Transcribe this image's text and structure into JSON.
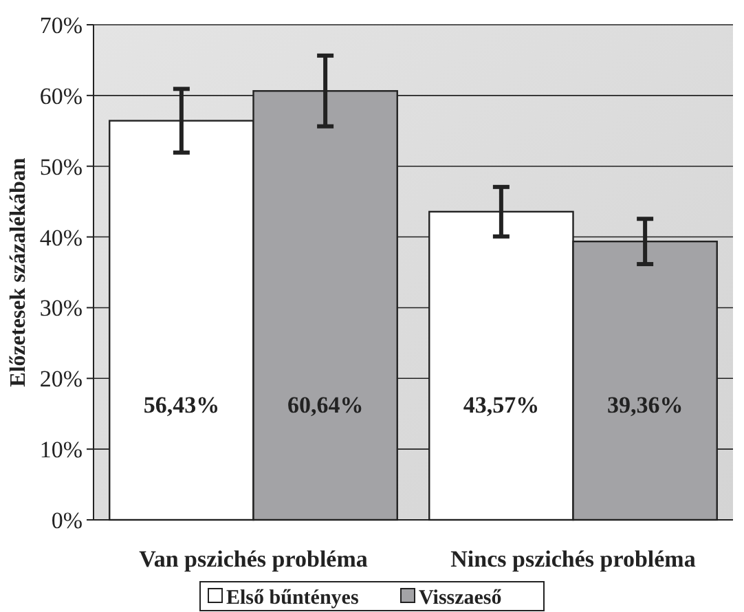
{
  "chart_data": {
    "type": "bar",
    "ylabel": "Előzetesek százalékában",
    "categories": [
      "Van pszichés probléma",
      "Nincs pszichés probléma"
    ],
    "series": [
      {
        "name": "Első bűntényes",
        "color": "#ffffff",
        "values": [
          56.43,
          43.57
        ],
        "errors": [
          4.5,
          3.5
        ],
        "value_labels": [
          "56,43%",
          "43,57%"
        ]
      },
      {
        "name": "Visszaeső",
        "color": "#a3a3a6",
        "values": [
          60.64,
          39.36
        ],
        "errors": [
          5,
          3.2
        ],
        "value_labels": [
          "60,64%",
          "39,36%"
        ]
      }
    ],
    "ylim": [
      0,
      70
    ],
    "yticks": [
      {
        "value": 0,
        "label": "0%"
      },
      {
        "value": 10,
        "label": "10%"
      },
      {
        "value": 20,
        "label": "20%"
      },
      {
        "value": 30,
        "label": "30%"
      },
      {
        "value": 40,
        "label": "40%"
      },
      {
        "value": 50,
        "label": "50%"
      },
      {
        "value": 60,
        "label": "60%"
      },
      {
        "value": 70,
        "label": "70%"
      }
    ],
    "grid": "y",
    "legend": "bottom"
  }
}
